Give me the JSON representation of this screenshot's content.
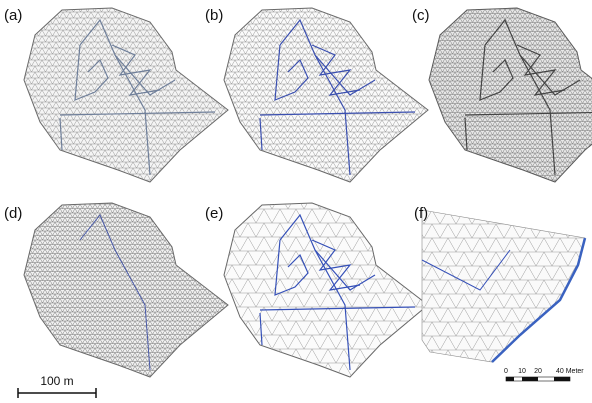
{
  "panels": [
    {
      "label": "(a)"
    },
    {
      "label": "(b)"
    },
    {
      "label": "(c)"
    },
    {
      "label": "(d)"
    },
    {
      "label": "(e)"
    },
    {
      "label": "(f)"
    }
  ],
  "scale_bar": {
    "label": "100 m"
  },
  "inset_scale": {
    "ticks": [
      "0",
      "10",
      "20",
      "40 Meter"
    ]
  }
}
